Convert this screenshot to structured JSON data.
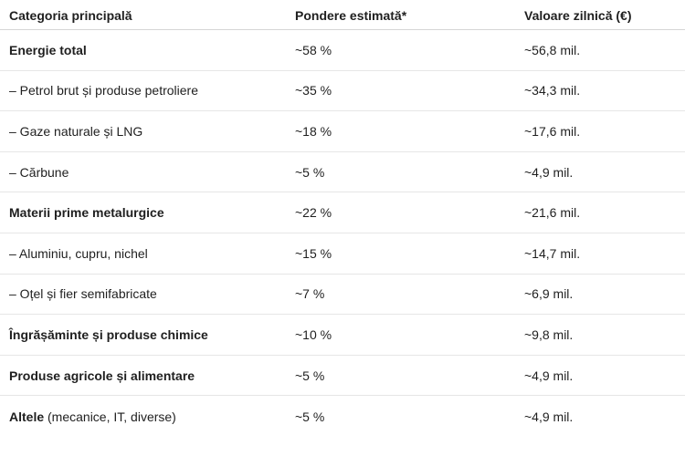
{
  "table": {
    "headers": [
      "Categoria principală",
      "Pondere estimată*",
      "Valoare zilnică (€)"
    ],
    "rows": [
      {
        "label": "Energie total",
        "suffix": "",
        "share": "~58 %",
        "value": "~56,8 mil.",
        "bold": true
      },
      {
        "label": "– Petrol brut și produse petroliere",
        "suffix": "",
        "share": "~35 %",
        "value": "~34,3 mil.",
        "bold": false
      },
      {
        "label": "– Gaze naturale și LNG",
        "suffix": "",
        "share": "~18 %",
        "value": "~17,6 mil.",
        "bold": false
      },
      {
        "label": "– Cărbune",
        "suffix": "",
        "share": "~5 %",
        "value": "~4,9 mil.",
        "bold": false
      },
      {
        "label": "Materii prime metalurgice",
        "suffix": "",
        "share": "~22 %",
        "value": "~21,6 mil.",
        "bold": true
      },
      {
        "label": "– Aluminiu, cupru, nichel",
        "suffix": "",
        "share": "~15 %",
        "value": "~14,7 mil.",
        "bold": false
      },
      {
        "label": "– Oțel și fier semifabricate",
        "suffix": "",
        "share": "~7 %",
        "value": "~6,9 mil.",
        "bold": false
      },
      {
        "label": "Îngrășăminte și produse chimice",
        "suffix": "",
        "share": "~10 %",
        "value": "~9,8 mil.",
        "bold": true
      },
      {
        "label": "Produse agricole și alimentare",
        "suffix": "",
        "share": "~5 %",
        "value": "~4,9 mil.",
        "bold": true
      },
      {
        "label": "Altele",
        "suffix": " (mecanice, IT, diverse)",
        "share": "~5 %",
        "value": "~4,9 mil.",
        "bold": true
      }
    ]
  }
}
